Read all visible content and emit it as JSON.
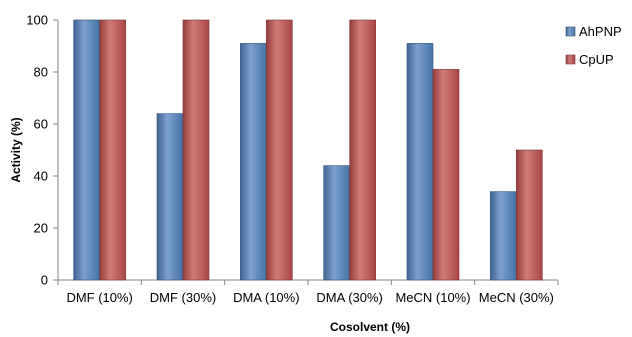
{
  "chart_data": {
    "type": "bar",
    "categories": [
      "DMF (10%)",
      "DMF (30%)",
      "DMA (10%)",
      "DMA (30%)",
      "MeCN (10%)",
      "MeCN (30%)"
    ],
    "series": [
      {
        "name": "AhPNP",
        "values": [
          100,
          64,
          91,
          44,
          91,
          34
        ],
        "color": "#4f81bd"
      },
      {
        "name": "CpUP",
        "values": [
          100,
          100,
          100,
          100,
          81,
          50
        ],
        "color": "#c0504d"
      }
    ],
    "title": "",
    "xlabel": "Cosolvent (%)",
    "ylabel": "Activity (%)",
    "ylim": [
      0,
      100
    ],
    "yticks": [
      0,
      20,
      40,
      60,
      80,
      100
    ],
    "grid": false,
    "legend_position": "right"
  }
}
